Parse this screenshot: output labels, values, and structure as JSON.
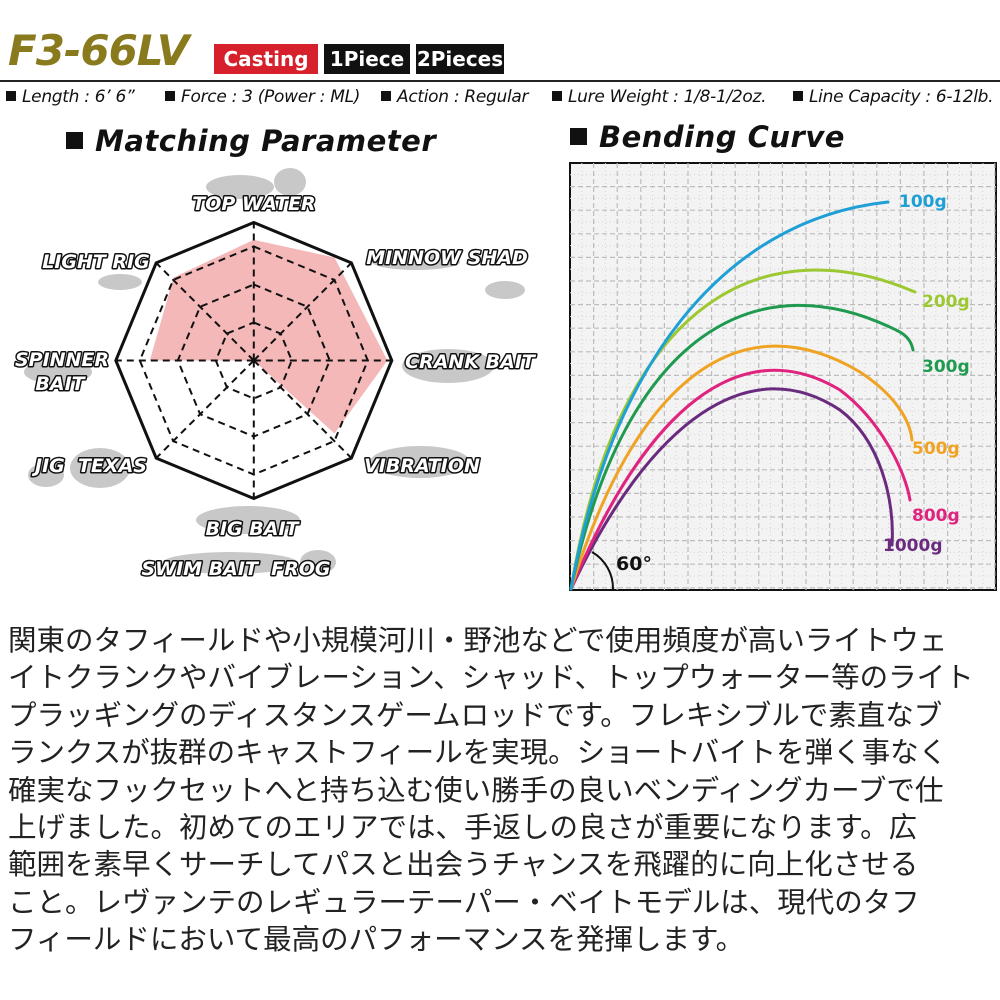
{
  "header": {
    "model": "F3-66LV",
    "badges": [
      "Casting",
      "1Piece",
      "2Pieces"
    ],
    "badge_colors": [
      "#d6202b",
      "#111111",
      "#111111"
    ]
  },
  "specs": [
    "Length : 6’ 6”",
    "Force : 3 (Power : ML)",
    "Action : Regular",
    "Lure Weight : 1/8-1/2oz.",
    "Line Capacity : 6-12lb."
  ],
  "matching": {
    "title": "Matching Parameter",
    "labels": {
      "top_water": "TOP WATER",
      "minnow_shad": "MINNOW SHAD",
      "crank_bait": "CRANK BAIT",
      "vibration": "VIBRATION",
      "big_bait": "BIG BAIT",
      "swim_bait_frog": "SWIM BAIT  FROG",
      "jig_texas": "JIG  TEXAS",
      "spinner_bait_1": "SPINNER",
      "spinner_bait_2": "BAIT",
      "light_rig": "LIGHT RIG"
    },
    "fill_color": "#f4b8b8"
  },
  "bending": {
    "title": "Bending Curve",
    "angle_label": "60°",
    "curves": [
      {
        "label": "100g",
        "color": "#1e9fd6"
      },
      {
        "label": "200g",
        "color": "#9cc832"
      },
      {
        "label": "300g",
        "color": "#1f9a4f"
      },
      {
        "label": "500g",
        "color": "#f0a323"
      },
      {
        "label": "800g",
        "color": "#e0237f"
      },
      {
        "label": "1000g",
        "color": "#6a2b7e"
      }
    ]
  },
  "description": [
    "関東のタフィールドや小規模河川・野池などで使用頻度が高いライトウェ",
    "イトクランクやバイブレーション、シャッド、トップウォーター等のライト",
    "プラッギングのディスタンスゲームロッドです。フレキシブルで素直なブ",
    "ランクスが抜群のキャストフィールを実現。ショートバイトを弾く事なく",
    "確実なフックセットへと持ち込む使い勝手の良いベンディングカーブで仕",
    "上げました。初めてのエリアでは、手返しの良さが重要になります。広",
    "範囲を素早くサーチしてパスと出会うチャンスを飛躍的に向上化させる",
    "こと。レヴァンテのレギュラーテーパー・ベイトモデルは、現代のタフ",
    "フィールドにおいて最高のパフォーマンスを発揮します。"
  ]
}
